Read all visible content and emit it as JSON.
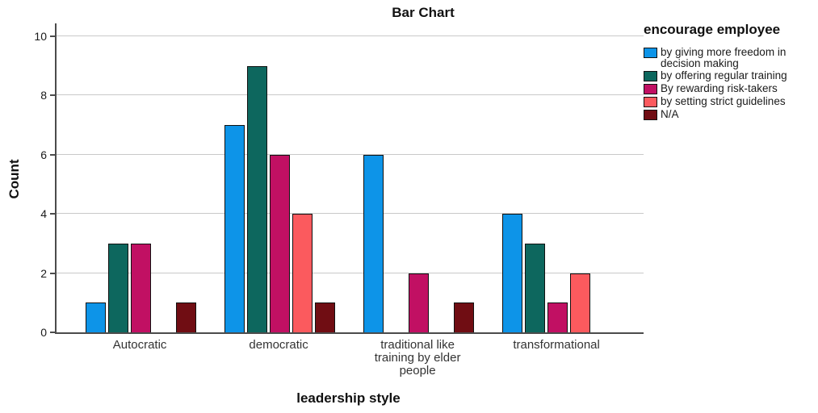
{
  "chart_data": {
    "type": "bar",
    "title": "Bar Chart",
    "xlabel": "leadership style",
    "ylabel": "Count",
    "categories": [
      "Autocratic",
      "democratic",
      "traditional like training by elder people",
      "transformational"
    ],
    "category_lines": [
      [
        "Autocratic"
      ],
      [
        "democratic"
      ],
      [
        "traditional like",
        "training by elder",
        "people"
      ],
      [
        "transformational"
      ]
    ],
    "series": [
      {
        "name": "by giving more freedom in decision making",
        "color": "#0d94e8",
        "values": [
          1,
          7,
          6,
          4
        ]
      },
      {
        "name": "by offering regular training",
        "color": "#0d675e",
        "values": [
          3,
          9,
          0,
          3
        ]
      },
      {
        "name": "By rewarding risk-takers",
        "color": "#c11063",
        "values": [
          3,
          6,
          2,
          1
        ]
      },
      {
        "name": "by setting strict guidelines",
        "color": "#fb5a5e",
        "values": [
          0,
          4,
          0,
          2
        ]
      },
      {
        "name": "N/A",
        "color": "#700d13",
        "values": [
          1,
          1,
          1,
          0
        ]
      }
    ],
    "ylim": [
      0,
      10
    ],
    "yticks": [
      0,
      2,
      4,
      6,
      8,
      10
    ],
    "grid": "horizontal",
    "legend": {
      "title": "encourage employee",
      "position": "right"
    },
    "colors": {
      "axis": "#4b4b4b",
      "gridline": "#c9c9c9",
      "bar_border": "#111111",
      "background": "#ffffff"
    }
  }
}
